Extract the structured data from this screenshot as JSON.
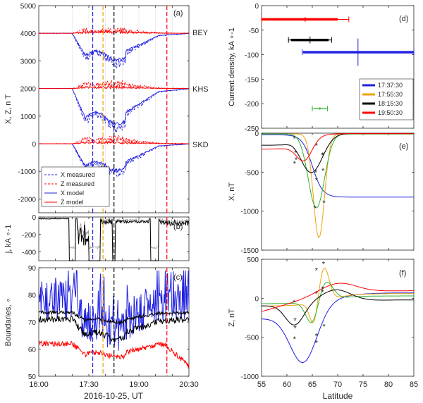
{
  "figure": {
    "time_xlabel": "2016-10-25, UT",
    "lat_xlabel": "Latitude",
    "time_ticks": [
      "16:00",
      "17:30",
      "19:00",
      "20:30"
    ],
    "colors": {
      "blue": "#1f1fe0",
      "orange": "#f0a30a",
      "black": "#000000",
      "red": "#ff0000",
      "green": "#2db52d",
      "gray": "#9a9a9a"
    }
  },
  "chart_data": [
    {
      "id": "a",
      "type": "line",
      "panel_label": "(a)",
      "ylabel": "X, Z, n T",
      "xlim_hours": [
        16.0,
        20.5
      ],
      "ylim": [
        -2500,
        5000
      ],
      "yticks": [
        -2000,
        -1000,
        0,
        1000,
        2000,
        3000,
        4000,
        5000
      ],
      "stations": [
        {
          "name": "BEY",
          "offset": 4000
        },
        {
          "name": "KHS",
          "offset": 2000
        },
        {
          "name": "SKD",
          "offset": 0
        }
      ],
      "legend": [
        "X measured",
        "Z measured",
        "X model",
        "Z model"
      ],
      "legend_position": "lower-left",
      "event_times_hours": [
        17.617,
        17.925,
        18.254,
        19.839
      ],
      "event_colors": [
        "#1f1fe0",
        "#f0a30a",
        "#000000",
        "#ff0000"
      ]
    },
    {
      "id": "b",
      "type": "line",
      "panel_label": "(b)",
      "ylabel": "j, kA ∘-1",
      "xlim_hours": [
        16.0,
        20.5
      ],
      "ylim": [
        -500,
        0
      ],
      "yticks": [
        -400,
        -200,
        0
      ]
    },
    {
      "id": "c",
      "type": "line",
      "panel_label": "(c)",
      "ylabel": "Boundaries, ∘",
      "xlim_hours": [
        16.0,
        20.5
      ],
      "ylim": [
        50,
        90
      ],
      "yticks": [
        50,
        60,
        70,
        80,
        90
      ]
    },
    {
      "id": "d",
      "type": "errorbar",
      "panel_label": "(d)",
      "ylabel": "Current density, kA ∘-1",
      "xlim": [
        55,
        85
      ],
      "ylim": [
        -250,
        0
      ],
      "yticks": [
        -250,
        -200,
        -150,
        -100,
        -50,
        0
      ],
      "legend_position": "right",
      "series": [
        {
          "name": "17:37:30",
          "color": "#1f1fe0",
          "start": 63.2,
          "end": 85.0,
          "value": -95,
          "err_low": 63.0,
          "err_high": 85.0,
          "y_err": 28
        },
        {
          "name": "17:55:30",
          "color": "#2db52d",
          "start": 65.3,
          "end": 67.7,
          "value": -210,
          "err_low": 65.0,
          "err_high": 68.0,
          "y_err": 3
        },
        {
          "name": "18:15:30",
          "color": "#000000",
          "start": 60.8,
          "end": 68.2,
          "value": -70,
          "err_low": 60.3,
          "err_high": 68.8,
          "y_err": 7
        },
        {
          "name": "19:50:30",
          "color": "#ff0000",
          "start": 55.0,
          "end": 70.0,
          "value": -28,
          "err_low": 55.0,
          "err_high": 72.2,
          "y_err": 5
        }
      ]
    },
    {
      "id": "e",
      "type": "line",
      "panel_label": "(e)",
      "ylabel": "X, nT",
      "xlim": [
        55,
        85
      ],
      "ylim": [
        -1500,
        0
      ],
      "yticks": [
        -1500,
        -1000,
        -500,
        0
      ]
    },
    {
      "id": "f",
      "type": "line",
      "panel_label": "(f)",
      "ylabel": "Z, nT",
      "xlim": [
        55,
        85
      ],
      "ylim": [
        -1000,
        500
      ],
      "yticks": [
        -1000,
        -500,
        0,
        500
      ],
      "xticks": [
        55,
        60,
        65,
        70,
        75,
        80,
        85
      ]
    }
  ]
}
